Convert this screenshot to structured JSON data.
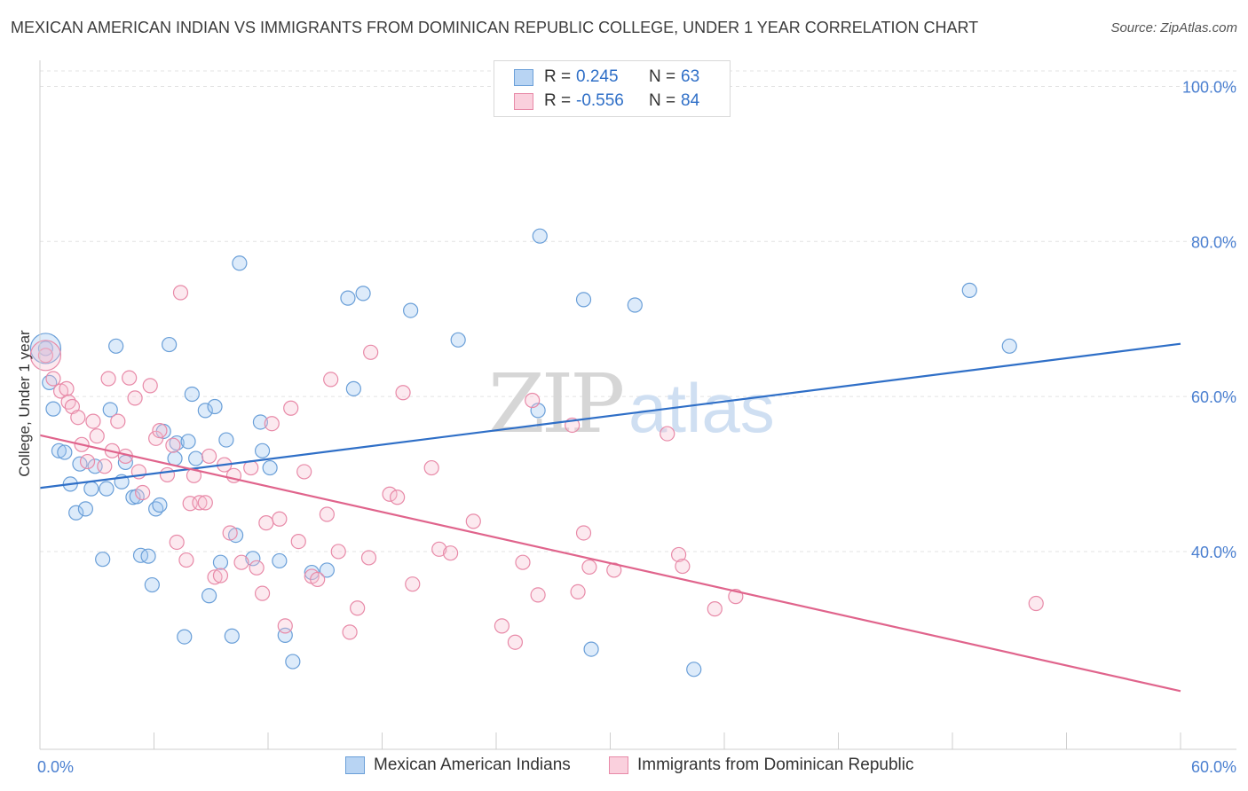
{
  "title": "MEXICAN AMERICAN INDIAN VS IMMIGRANTS FROM DOMINICAN REPUBLIC COLLEGE, UNDER 1 YEAR CORRELATION CHART",
  "source": "Source: ZipAtlas.com",
  "watermark": {
    "zip": "ZIP",
    "atlas": "atlas"
  },
  "stats": [
    {
      "r_label": "R =",
      "r_value": "0.245",
      "n_label": "N =",
      "n_value": "63",
      "color": "#9ec5f0",
      "border": "#6a9fd8"
    },
    {
      "r_label": "R =",
      "r_value": "-0.556",
      "n_label": "N =",
      "n_value": "84",
      "color": "#f7bfd1",
      "border": "#e88aa8"
    }
  ],
  "legend": [
    {
      "label": "Mexican American Indians",
      "color": "#b8d4f3",
      "border": "#6a9fd8"
    },
    {
      "label": "Immigrants from Dominican Republic",
      "color": "#fad0dd",
      "border": "#e88aa8"
    }
  ],
  "chart_data": {
    "type": "scatter",
    "ylabel": "College, Under 1 year",
    "xlabel": "",
    "xlim": [
      0,
      60
    ],
    "ylim": [
      17,
      102
    ],
    "x_tick_labels": [
      {
        "value": 0,
        "label": "0.0%"
      },
      {
        "value": 60,
        "label": "60.0%"
      }
    ],
    "y_tick_labels": [
      {
        "value": 100,
        "label": "100.0%"
      },
      {
        "value": 80,
        "label": "80.0%"
      },
      {
        "value": 60,
        "label": "60.0%"
      },
      {
        "value": 40,
        "label": "40.0%"
      }
    ],
    "grid": true,
    "series": [
      {
        "name": "Mexican American Indians",
        "color": "#6a9fd8",
        "fill": "rgba(158,197,240,0.35)",
        "line_color": "#2f6fc7",
        "trend": {
          "x0": 0,
          "y0": 48.2,
          "x1": 60,
          "y1": 66.8
        },
        "points": [
          [
            0.3,
            66.2
          ],
          [
            0.5,
            61.8
          ],
          [
            0.7,
            58.4
          ],
          [
            1.0,
            53.0
          ],
          [
            1.3,
            52.8
          ],
          [
            1.6,
            48.7
          ],
          [
            1.9,
            45.0
          ],
          [
            2.1,
            51.3
          ],
          [
            2.4,
            45.5
          ],
          [
            2.7,
            48.1
          ],
          [
            2.9,
            51.0
          ],
          [
            3.3,
            39.0
          ],
          [
            3.5,
            48.1
          ],
          [
            3.7,
            58.3
          ],
          [
            4.0,
            66.5
          ],
          [
            4.3,
            49.0
          ],
          [
            4.5,
            51.5
          ],
          [
            4.9,
            47.0
          ],
          [
            5.1,
            47.1
          ],
          [
            5.3,
            39.5
          ],
          [
            5.7,
            39.4
          ],
          [
            5.9,
            35.7
          ],
          [
            6.1,
            45.5
          ],
          [
            6.3,
            46.0
          ],
          [
            6.5,
            55.5
          ],
          [
            6.8,
            66.7
          ],
          [
            7.1,
            52.0
          ],
          [
            7.2,
            54.0
          ],
          [
            7.6,
            29.0
          ],
          [
            7.8,
            54.2
          ],
          [
            8.0,
            60.3
          ],
          [
            8.2,
            52.0
          ],
          [
            8.7,
            58.2
          ],
          [
            8.9,
            34.3
          ],
          [
            9.2,
            58.7
          ],
          [
            9.5,
            38.6
          ],
          [
            9.8,
            54.4
          ],
          [
            10.1,
            29.1
          ],
          [
            10.3,
            42.1
          ],
          [
            10.5,
            77.2
          ],
          [
            11.2,
            39.1
          ],
          [
            11.6,
            56.7
          ],
          [
            11.7,
            53.0
          ],
          [
            12.1,
            50.8
          ],
          [
            12.6,
            38.8
          ],
          [
            12.9,
            29.2
          ],
          [
            13.3,
            25.8
          ],
          [
            14.3,
            37.3
          ],
          [
            15.1,
            37.6
          ],
          [
            16.2,
            72.7
          ],
          [
            16.5,
            61.0
          ],
          [
            17.0,
            73.3
          ],
          [
            19.5,
            71.1
          ],
          [
            22.0,
            67.3
          ],
          [
            26.2,
            58.2
          ],
          [
            26.3,
            80.7
          ],
          [
            28.6,
            72.5
          ],
          [
            29.0,
            27.4
          ],
          [
            31.3,
            71.8
          ],
          [
            34.4,
            24.8
          ],
          [
            48.9,
            73.7
          ],
          [
            51.0,
            66.5
          ]
        ],
        "big_point": [
          0.3,
          66.2
        ]
      },
      {
        "name": "Immigrants from Dominican Republic",
        "color": "#e88aa8",
        "fill": "rgba(247,191,209,0.35)",
        "line_color": "#e0648c",
        "trend": {
          "x0": 0,
          "y0": 55.0,
          "x1": 60,
          "y1": 22.0
        },
        "points": [
          [
            0.3,
            65.3
          ],
          [
            0.7,
            62.3
          ],
          [
            1.1,
            60.7
          ],
          [
            1.4,
            61.0
          ],
          [
            1.5,
            59.3
          ],
          [
            1.7,
            58.7
          ],
          [
            2.0,
            57.3
          ],
          [
            2.2,
            53.8
          ],
          [
            2.5,
            51.6
          ],
          [
            2.8,
            56.8
          ],
          [
            3.0,
            54.9
          ],
          [
            3.4,
            51.0
          ],
          [
            3.6,
            62.3
          ],
          [
            3.8,
            53.0
          ],
          [
            4.1,
            56.8
          ],
          [
            4.5,
            52.3
          ],
          [
            4.7,
            62.4
          ],
          [
            5.0,
            59.8
          ],
          [
            5.2,
            50.3
          ],
          [
            5.4,
            47.6
          ],
          [
            5.8,
            61.4
          ],
          [
            6.1,
            54.6
          ],
          [
            6.3,
            55.6
          ],
          [
            6.7,
            49.9
          ],
          [
            7.0,
            53.7
          ],
          [
            7.2,
            41.2
          ],
          [
            7.4,
            73.4
          ],
          [
            7.7,
            38.9
          ],
          [
            7.9,
            46.2
          ],
          [
            8.1,
            49.8
          ],
          [
            8.4,
            46.3
          ],
          [
            8.7,
            46.3
          ],
          [
            8.9,
            52.3
          ],
          [
            9.2,
            36.7
          ],
          [
            9.5,
            36.9
          ],
          [
            9.7,
            51.2
          ],
          [
            10.0,
            42.4
          ],
          [
            10.2,
            49.8
          ],
          [
            10.6,
            38.6
          ],
          [
            11.1,
            50.8
          ],
          [
            11.4,
            37.9
          ],
          [
            11.7,
            34.6
          ],
          [
            11.9,
            43.7
          ],
          [
            12.2,
            56.5
          ],
          [
            12.6,
            44.2
          ],
          [
            12.9,
            30.4
          ],
          [
            13.2,
            58.5
          ],
          [
            13.6,
            41.3
          ],
          [
            13.9,
            50.3
          ],
          [
            14.3,
            36.8
          ],
          [
            14.6,
            36.4
          ],
          [
            15.1,
            44.8
          ],
          [
            15.3,
            62.2
          ],
          [
            15.7,
            40.0
          ],
          [
            16.3,
            29.6
          ],
          [
            16.7,
            32.7
          ],
          [
            17.3,
            39.2
          ],
          [
            17.4,
            65.7
          ],
          [
            18.4,
            47.4
          ],
          [
            18.8,
            47.0
          ],
          [
            19.1,
            60.5
          ],
          [
            19.6,
            35.8
          ],
          [
            20.6,
            50.8
          ],
          [
            21.0,
            40.3
          ],
          [
            21.6,
            39.8
          ],
          [
            22.8,
            43.9
          ],
          [
            24.3,
            30.4
          ],
          [
            25.0,
            28.3
          ],
          [
            25.4,
            38.6
          ],
          [
            25.9,
            59.5
          ],
          [
            26.2,
            34.4
          ],
          [
            28.0,
            56.3
          ],
          [
            28.3,
            34.8
          ],
          [
            28.6,
            42.4
          ],
          [
            28.9,
            38.0
          ],
          [
            30.2,
            37.6
          ],
          [
            33.0,
            55.2
          ],
          [
            33.6,
            39.6
          ],
          [
            33.8,
            38.1
          ],
          [
            35.5,
            32.6
          ],
          [
            36.6,
            34.2
          ],
          [
            52.4,
            33.3
          ]
        ],
        "big_point": [
          0.3,
          65.3
        ]
      }
    ]
  }
}
